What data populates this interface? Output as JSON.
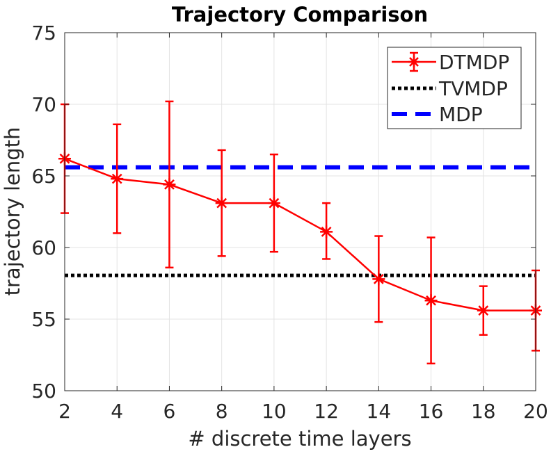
{
  "chart_data": {
    "type": "line",
    "title": "Trajectory Comparison",
    "xlabel": "# discrete time layers",
    "ylabel": "trajectory length",
    "xlim": [
      2,
      20
    ],
    "ylim": [
      50,
      75
    ],
    "xticks": [
      2,
      4,
      6,
      8,
      10,
      12,
      14,
      16,
      18,
      20
    ],
    "yticks": [
      50,
      55,
      60,
      65,
      70,
      75
    ],
    "grid": true,
    "legend_position": "top-right",
    "series": [
      {
        "name": "DTMDP",
        "style": "solid-errorbar-asterisk",
        "color": "#ff0000",
        "x": [
          2,
          4,
          6,
          8,
          10,
          12,
          14,
          16,
          18,
          20
        ],
        "values": [
          66.2,
          64.8,
          64.4,
          63.1,
          63.1,
          61.1,
          57.8,
          56.3,
          55.6,
          55.6
        ],
        "err_low": [
          62.4,
          61.0,
          58.6,
          59.4,
          59.7,
          59.2,
          54.8,
          51.9,
          53.9,
          52.8
        ],
        "err_high": [
          70.0,
          68.6,
          70.2,
          66.8,
          66.5,
          63.1,
          60.8,
          60.7,
          57.3,
          58.4
        ]
      },
      {
        "name": "TVMDP",
        "style": "dotted",
        "color": "#000000",
        "x": [
          2,
          20
        ],
        "values": [
          58.05,
          58.05
        ]
      },
      {
        "name": "MDP",
        "style": "dashed",
        "color": "#0000ff",
        "x": [
          2,
          20
        ],
        "values": [
          65.6,
          65.6
        ]
      }
    ]
  }
}
